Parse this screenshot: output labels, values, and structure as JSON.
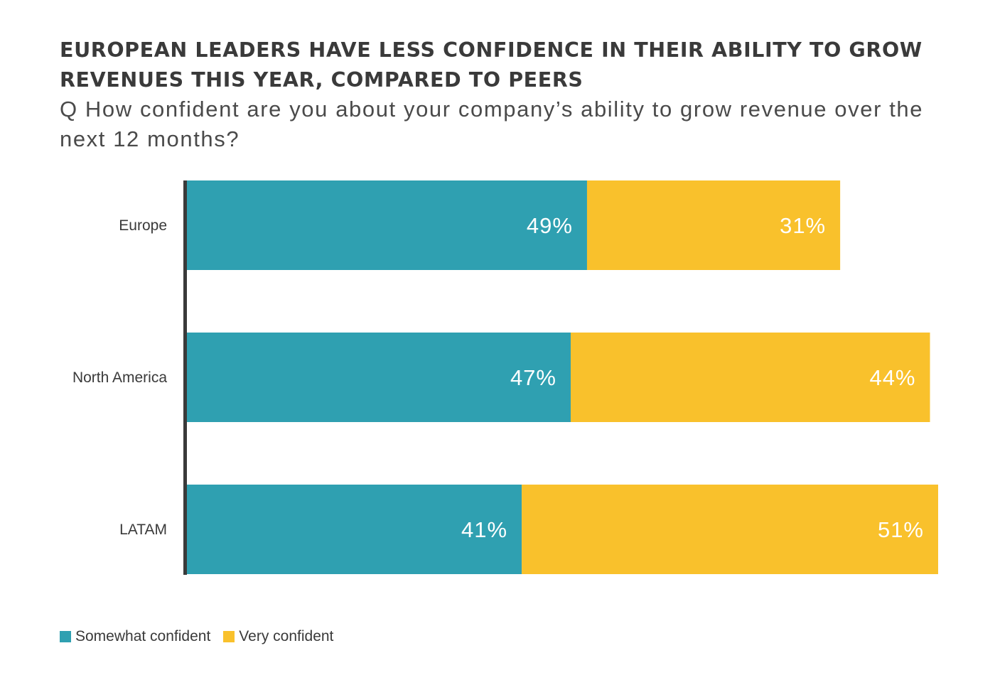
{
  "title": "EUROPEAN LEADERS HAVE LESS CONFIDENCE IN THEIR ABILITY TO GROW REVENUES THIS YEAR, COMPARED TO PEERS",
  "subtitle": "Q How confident are you about your company’s ability to grow revenue over the next 12 months?",
  "colors": {
    "somewhat": "#2fa0b1",
    "very": "#f9c12c",
    "axis": "#3a3a3a"
  },
  "legend": {
    "somewhat_label": "Somewhat confident",
    "very_label": "Very confident"
  },
  "chart_data": {
    "type": "bar",
    "orientation": "horizontal",
    "stacked": true,
    "categories": [
      "Europe",
      "North America",
      "LATAM"
    ],
    "series": [
      {
        "name": "Somewhat confident",
        "values": [
          49,
          47,
          41
        ],
        "labels": [
          "49%",
          "47%",
          "41%"
        ]
      },
      {
        "name": "Very confident",
        "values": [
          31,
          44,
          51
        ],
        "labels": [
          "31%",
          "44%",
          "51%"
        ]
      }
    ],
    "xlim": [
      0,
      92
    ],
    "grid": false,
    "legend_position": "bottom-left"
  }
}
